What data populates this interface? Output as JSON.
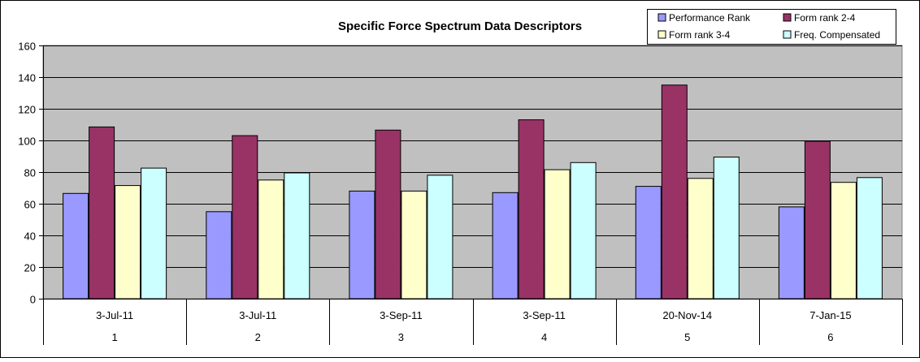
{
  "chart_data": {
    "type": "bar",
    "title": "Specific Force Spectrum Data Descriptors",
    "categories": [
      {
        "date": "3-Jul-11",
        "index": "1"
      },
      {
        "date": "3-Jul-11",
        "index": "2"
      },
      {
        "date": "3-Sep-11",
        "index": "3"
      },
      {
        "date": "3-Sep-11",
        "index": "4"
      },
      {
        "date": "20-Nov-14",
        "index": "5"
      },
      {
        "date": "7-Jan-15",
        "index": "6"
      }
    ],
    "series": [
      {
        "name": "Performance Rank",
        "color": "#9999ff",
        "values": [
          66.5,
          55,
          68,
          67,
          71,
          58
        ]
      },
      {
        "name": "Form rank 2-4",
        "color": "#993366",
        "values": [
          108.5,
          103,
          106.5,
          113,
          135,
          99.5
        ]
      },
      {
        "name": "Form rank 3-4",
        "color": "#ffffcc",
        "values": [
          71.5,
          75,
          68,
          81.5,
          76,
          73.5
        ]
      },
      {
        "name": "Freq. Compensated",
        "color": "#ccffff",
        "values": [
          82.5,
          79.5,
          78,
          86,
          89.5,
          76.5
        ]
      }
    ],
    "ylim": [
      0,
      160
    ],
    "yticks": [
      0,
      20,
      40,
      60,
      80,
      100,
      120,
      140,
      160
    ],
    "grid": true,
    "plot_background": "#c0c0c0",
    "legend_position": "top-right"
  }
}
